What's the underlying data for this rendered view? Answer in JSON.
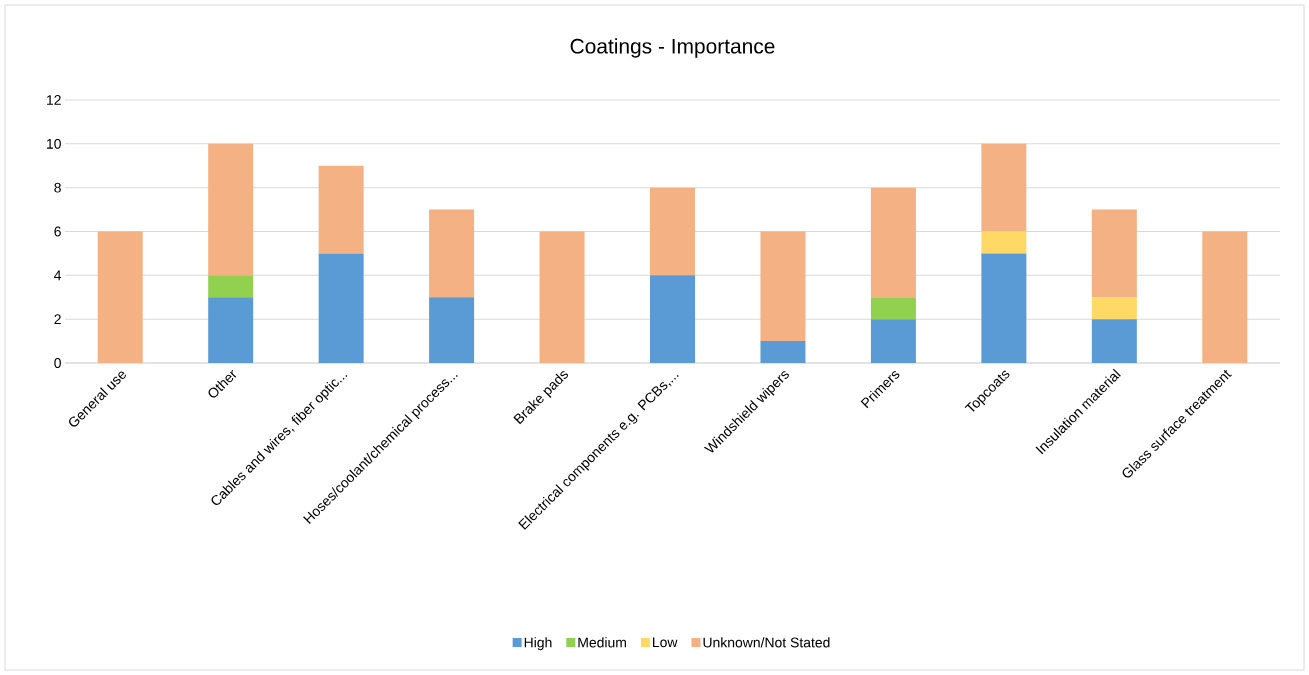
{
  "chart_data": {
    "type": "bar",
    "title": "Coatings - Importance",
    "stacked": true,
    "categories": [
      "General use",
      "Other",
      "Cables and wires, fiber optic...",
      "Hoses/coolant/chemical process...",
      "Brake pads",
      "Electrical components e.g. PCBs,...",
      "Windshield wipers",
      "Primers",
      "Topcoats",
      "Insulation material",
      "Glass surface treatment"
    ],
    "series": [
      {
        "name": "High",
        "color": "#5b9bd5",
        "values": [
          0,
          3,
          5,
          3,
          0,
          4,
          1,
          2,
          5,
          2,
          0
        ]
      },
      {
        "name": "Medium",
        "color": "#92d050",
        "values": [
          0,
          1,
          0,
          0,
          0,
          0,
          0,
          1,
          0,
          0,
          0
        ]
      },
      {
        "name": "Low",
        "color": "#ffd966",
        "values": [
          0,
          0,
          0,
          0,
          0,
          0,
          0,
          0,
          1,
          1,
          0
        ]
      },
      {
        "name": "Unknown/Not Stated",
        "color": "#f4b183",
        "values": [
          6,
          6,
          4,
          4,
          6,
          4,
          5,
          5,
          4,
          4,
          6
        ]
      }
    ],
    "ylim": [
      0,
      12
    ],
    "yticks": [
      0,
      2,
      4,
      6,
      8,
      10,
      12
    ],
    "grid": "y",
    "legend": "bottom"
  }
}
